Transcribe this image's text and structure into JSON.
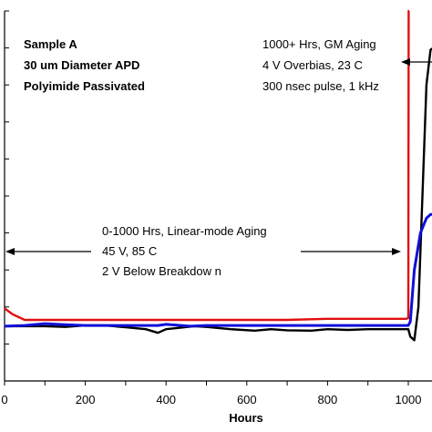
{
  "chart_data": {
    "type": "line",
    "xlabel": "Hours",
    "ylabel": "",
    "xlim": [
      0,
      1060
    ],
    "ylim": [
      0,
      1
    ],
    "x_ticks": [
      0,
      200,
      400,
      600,
      800,
      1000
    ],
    "grid": false,
    "series": [
      {
        "color": "#e01010",
        "points": [
          [
            0,
            0.196
          ],
          [
            20,
            0.18
          ],
          [
            50,
            0.165
          ],
          [
            100,
            0.165
          ],
          [
            150,
            0.165
          ],
          [
            200,
            0.165
          ],
          [
            300,
            0.165
          ],
          [
            400,
            0.165
          ],
          [
            500,
            0.165
          ],
          [
            600,
            0.165
          ],
          [
            700,
            0.165
          ],
          [
            800,
            0.168
          ],
          [
            900,
            0.168
          ],
          [
            995,
            0.168
          ],
          [
            1000,
            0.17
          ],
          [
            1001,
            1.0
          ],
          [
            1002,
            1.0
          ]
        ]
      },
      {
        "color": "#000000",
        "points": [
          [
            0,
            0.148
          ],
          [
            50,
            0.148
          ],
          [
            100,
            0.148
          ],
          [
            150,
            0.146
          ],
          [
            200,
            0.15
          ],
          [
            250,
            0.15
          ],
          [
            300,
            0.145
          ],
          [
            350,
            0.14
          ],
          [
            380,
            0.13
          ],
          [
            400,
            0.14
          ],
          [
            470,
            0.148
          ],
          [
            500,
            0.146
          ],
          [
            560,
            0.14
          ],
          [
            620,
            0.136
          ],
          [
            660,
            0.14
          ],
          [
            700,
            0.137
          ],
          [
            760,
            0.136
          ],
          [
            800,
            0.14
          ],
          [
            850,
            0.138
          ],
          [
            900,
            0.14
          ],
          [
            950,
            0.14
          ],
          [
            1000,
            0.14
          ],
          [
            1005,
            0.12
          ],
          [
            1015,
            0.11
          ],
          [
            1025,
            0.2
          ],
          [
            1035,
            0.5
          ],
          [
            1045,
            0.8
          ],
          [
            1055,
            0.895
          ],
          [
            1062,
            0.9
          ]
        ]
      },
      {
        "color": "#1010d8",
        "points": [
          [
            0,
            0.148
          ],
          [
            50,
            0.15
          ],
          [
            100,
            0.155
          ],
          [
            150,
            0.152
          ],
          [
            200,
            0.15
          ],
          [
            300,
            0.15
          ],
          [
            380,
            0.15
          ],
          [
            400,
            0.153
          ],
          [
            460,
            0.148
          ],
          [
            500,
            0.15
          ],
          [
            600,
            0.15
          ],
          [
            700,
            0.15
          ],
          [
            800,
            0.15
          ],
          [
            900,
            0.15
          ],
          [
            1000,
            0.15
          ],
          [
            1005,
            0.16
          ],
          [
            1015,
            0.3
          ],
          [
            1030,
            0.4
          ],
          [
            1045,
            0.44
          ],
          [
            1055,
            0.45
          ],
          [
            1062,
            0.45
          ]
        ]
      }
    ],
    "annotations": {
      "left_block": [
        "Sample A",
        "30 um Diameter APD",
        "Polyimide Passivated"
      ],
      "gm_block": [
        "1000+ Hrs, GM Aging",
        "4 V Overbias, 23 C",
        "300 nsec pulse, 1 kHz"
      ],
      "linear_block": [
        "0-1000 Hrs, Linear-mode Aging",
        "45 V, 85 C",
        "2 V Below Breakdow n"
      ]
    }
  }
}
